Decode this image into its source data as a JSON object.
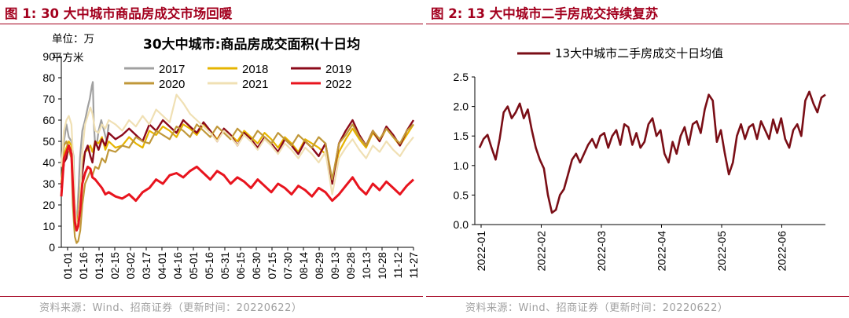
{
  "left": {
    "fig_title": "图 1:  30 大中城市商品房成交市场回暖",
    "source": "资料来源：Wind、招商证券（更新时间：20220622）"
  },
  "right": {
    "fig_title": "图 2:  13 大中城市二手房成交持续复苏",
    "source": "资料来源：Wind、招商证券（更新时间：20220622）"
  },
  "chart_data": [
    {
      "type": "line",
      "title": "30大中城市:商品房成交面积(十日均",
      "ylabel": "单位：万平方米",
      "ylabel_line1": "单位：万",
      "ylabel_line2": "平方米",
      "ylim": [
        0,
        90
      ],
      "yticks": [
        "0",
        "10",
        "20",
        "30",
        "40",
        "50",
        "60",
        "70",
        "80",
        "90"
      ],
      "xticks": [
        "01-01",
        "01-16",
        "01-31",
        "02-15",
        "03-02",
        "03-17",
        "04-01",
        "04-16",
        "05-01",
        "05-16",
        "05-31",
        "06-15",
        "06-30",
        "07-15",
        "07-30",
        "08-14",
        "08-29",
        "09-13",
        "09-28",
        "10-13",
        "10-28",
        "11-12",
        "11-27"
      ],
      "legend_position": "top",
      "grid": false,
      "series": [
        {
          "name": "2017",
          "color": "#a0a0a0",
          "x": [
            0,
            8,
            15,
            22,
            30,
            36,
            42,
            48,
            55,
            62,
            70,
            78,
            84,
            90,
            93,
            96,
            100,
            106,
            110,
            118,
            126,
            134,
            140
          ],
          "values": [
            38,
            50,
            58,
            52,
            50,
            43,
            10,
            18,
            42,
            55,
            60,
            66,
            70,
            76,
            78,
            58,
            48,
            50,
            55,
            60,
            55,
            50,
            58
          ]
        },
        {
          "name": "2018",
          "color": "#e6b400",
          "x": [
            0,
            8,
            15,
            22,
            30,
            34,
            40,
            45,
            50,
            56,
            62,
            70,
            78,
            86,
            92,
            100,
            110,
            120,
            130,
            140,
            160,
            180,
            200,
            220,
            240,
            260,
            280,
            300,
            320,
            340,
            360,
            380,
            400,
            420,
            440,
            460,
            480,
            500,
            520,
            540,
            560,
            580,
            600,
            620,
            640,
            660,
            680,
            700,
            720,
            740,
            760,
            780,
            800,
            820,
            840,
            860,
            880,
            900,
            920,
            940,
            960,
            980,
            1000,
            1020,
            1040
          ],
          "values": [
            30,
            44,
            47,
            50,
            48,
            40,
            16,
            12,
            15,
            28,
            40,
            45,
            46,
            48,
            45,
            50,
            49,
            52,
            46,
            50,
            47,
            48,
            52,
            49,
            47,
            55,
            53,
            57,
            55,
            52,
            58,
            56,
            53,
            58,
            55,
            51,
            56,
            53,
            50,
            55,
            52,
            49,
            54,
            51,
            47,
            52,
            49,
            45,
            51,
            49,
            47,
            44,
            32,
            45,
            51,
            56,
            51,
            47,
            54,
            50,
            56,
            52,
            48,
            53,
            58
          ]
        },
        {
          "name": "2019",
          "color": "#8b0a1a",
          "x": [
            0,
            8,
            15,
            22,
            30,
            34,
            40,
            45,
            50,
            56,
            62,
            70,
            78,
            86,
            92,
            100,
            110,
            120,
            130,
            140,
            160,
            180,
            200,
            220,
            240,
            260,
            280,
            300,
            320,
            340,
            360,
            380,
            400,
            420,
            440,
            460,
            480,
            500,
            520,
            540,
            560,
            580,
            600,
            620,
            640,
            660,
            680,
            700,
            720,
            740,
            760,
            780,
            800,
            820,
            840,
            860,
            880,
            900,
            920,
            940,
            960,
            980,
            1000,
            1020,
            1040
          ],
          "values": [
            28,
            40,
            42,
            48,
            45,
            35,
            14,
            9,
            12,
            25,
            35,
            45,
            48,
            43,
            40,
            50,
            46,
            51,
            48,
            54,
            51,
            53,
            56,
            53,
            50,
            58,
            55,
            60,
            57,
            54,
            60,
            57,
            54,
            59,
            55,
            50,
            56,
            53,
            48,
            54,
            51,
            47,
            52,
            49,
            45,
            51,
            48,
            44,
            50,
            47,
            43,
            49,
            30,
            49,
            55,
            60,
            53,
            48,
            55,
            50,
            57,
            53,
            48,
            55,
            60
          ]
        },
        {
          "name": "2020",
          "color": "#c0983a",
          "x": [
            0,
            8,
            15,
            22,
            30,
            34,
            40,
            45,
            50,
            56,
            62,
            70,
            78,
            86,
            92,
            100,
            110,
            120,
            130,
            140,
            160,
            180,
            200,
            220,
            240,
            260,
            280,
            300,
            320,
            340,
            360,
            380,
            400,
            420,
            440,
            460,
            480,
            500,
            520,
            540,
            560,
            580,
            600,
            620,
            640,
            660,
            680,
            700,
            720,
            740,
            760,
            780,
            800,
            820,
            840,
            860,
            880,
            900,
            920,
            940,
            960,
            980,
            1000,
            1020,
            1040
          ],
          "values": [
            40,
            48,
            50,
            46,
            42,
            20,
            5,
            2,
            3,
            8,
            20,
            30,
            33,
            36,
            34,
            38,
            37,
            42,
            40,
            46,
            45,
            48,
            47,
            52,
            50,
            49,
            55,
            53,
            51,
            57,
            55,
            52,
            58,
            55,
            52,
            57,
            54,
            51,
            56,
            53,
            50,
            55,
            52,
            49,
            54,
            51,
            48,
            53,
            50,
            47,
            52,
            49,
            32,
            49,
            53,
            58,
            52,
            48,
            55,
            51,
            56,
            52,
            49,
            55,
            58
          ]
        },
        {
          "name": "2021",
          "color": "#f0e0b4",
          "x": [
            0,
            8,
            15,
            22,
            30,
            34,
            40,
            45,
            50,
            56,
            62,
            70,
            78,
            86,
            92,
            100,
            110,
            120,
            130,
            140,
            160,
            180,
            200,
            220,
            240,
            260,
            280,
            300,
            320,
            340,
            360,
            380,
            400,
            420,
            440,
            460,
            480,
            500,
            520,
            540,
            560,
            580,
            600,
            620,
            640,
            660,
            680,
            700,
            720,
            740,
            760,
            780,
            800,
            820,
            840,
            860,
            880,
            900,
            920,
            940,
            960,
            980,
            1000,
            1020,
            1040
          ],
          "values": [
            38,
            55,
            60,
            62,
            58,
            45,
            22,
            10,
            12,
            25,
            45,
            58,
            62,
            66,
            63,
            55,
            54,
            58,
            56,
            60,
            58,
            55,
            60,
            57,
            62,
            58,
            65,
            62,
            59,
            72,
            68,
            63,
            60,
            57,
            54,
            50,
            55,
            52,
            48,
            53,
            50,
            46,
            51,
            48,
            44,
            49,
            46,
            42,
            47,
            44,
            40,
            45,
            25,
            42,
            47,
            51,
            46,
            42,
            48,
            45,
            50,
            46,
            43,
            48,
            52
          ]
        },
        {
          "name": "2022",
          "color": "#e8141e",
          "x": [
            0,
            8,
            15,
            22,
            30,
            34,
            40,
            45,
            50,
            56,
            62,
            70,
            78,
            86,
            92,
            100,
            110,
            120,
            130,
            140,
            160,
            180,
            200,
            220,
            240,
            260,
            280,
            300,
            320,
            340,
            360,
            380,
            400,
            420,
            440,
            460,
            480,
            500,
            520,
            540,
            560,
            580,
            600,
            620,
            640,
            660,
            680,
            700,
            720,
            740,
            760,
            780,
            800,
            820,
            840,
            860,
            880,
            900,
            920,
            940,
            960,
            980,
            1000,
            1020,
            1040
          ],
          "values": [
            24,
            42,
            45,
            48,
            44,
            30,
            12,
            8,
            10,
            18,
            30,
            35,
            38,
            37,
            33,
            32,
            30,
            28,
            25,
            26,
            24,
            23,
            25,
            22,
            26,
            28,
            32,
            30,
            34,
            35,
            33,
            36,
            38,
            35,
            32,
            36,
            34,
            30,
            33,
            31,
            28,
            32,
            29,
            26,
            30,
            28,
            25,
            29,
            27,
            24,
            28,
            26,
            22,
            25,
            29,
            33,
            28,
            25,
            30,
            27,
            31,
            28,
            25,
            29,
            32
          ]
        }
      ]
    },
    {
      "type": "line",
      "title": "",
      "ylim": [
        0,
        2.5
      ],
      "yticks": [
        "0.0",
        "0.5",
        "1.0",
        "1.5",
        "2.0",
        "2.5"
      ],
      "xticks": [
        "2022-01",
        "2022-02",
        "2022-03",
        "2022-04",
        "2022-05",
        "2022-06"
      ],
      "legend_position": "top",
      "grid": false,
      "series": [
        {
          "name": "13大中城市二手房成交十日均值",
          "color": "#7a0e16",
          "x": [
            0,
            2,
            4,
            6,
            8,
            10,
            12,
            14,
            16,
            18,
            20,
            22,
            24,
            26,
            28,
            30,
            32,
            34,
            36,
            38,
            40,
            42,
            44,
            46,
            48,
            50,
            52,
            54,
            56,
            58,
            60,
            62,
            64,
            66,
            68,
            70,
            72,
            74,
            76,
            78,
            80,
            82,
            84,
            86,
            88,
            90,
            92,
            94,
            96,
            98,
            100,
            102,
            104,
            106,
            108,
            110,
            112,
            114,
            116,
            118,
            120,
            122,
            124,
            126,
            128,
            130,
            132,
            134,
            136,
            138,
            140,
            142,
            144,
            146,
            148,
            150,
            152,
            154,
            156,
            158,
            160,
            162,
            164,
            166,
            168,
            170,
            172
          ],
          "values": [
            1.3,
            1.45,
            1.52,
            1.3,
            1.1,
            1.45,
            1.9,
            2.0,
            1.8,
            1.9,
            2.05,
            1.8,
            1.95,
            1.6,
            1.3,
            1.1,
            0.95,
            0.5,
            0.2,
            0.25,
            0.5,
            0.6,
            0.85,
            1.1,
            1.2,
            1.05,
            1.2,
            1.35,
            1.45,
            1.3,
            1.5,
            1.55,
            1.3,
            1.5,
            1.6,
            1.35,
            1.7,
            1.65,
            1.35,
            1.55,
            1.3,
            1.4,
            1.7,
            1.8,
            1.5,
            1.6,
            1.2,
            1.05,
            1.4,
            1.2,
            1.5,
            1.65,
            1.35,
            1.7,
            1.75,
            1.55,
            1.95,
            2.2,
            2.1,
            1.4,
            1.6,
            1.2,
            0.85,
            1.05,
            1.5,
            1.7,
            1.45,
            1.65,
            1.7,
            1.45,
            1.75,
            1.6,
            1.45,
            1.78,
            1.55,
            1.8,
            1.45,
            1.3,
            1.6,
            1.7,
            1.5,
            2.1,
            2.25,
            2.05,
            1.9,
            2.15,
            2.2
          ]
        }
      ]
    }
  ]
}
